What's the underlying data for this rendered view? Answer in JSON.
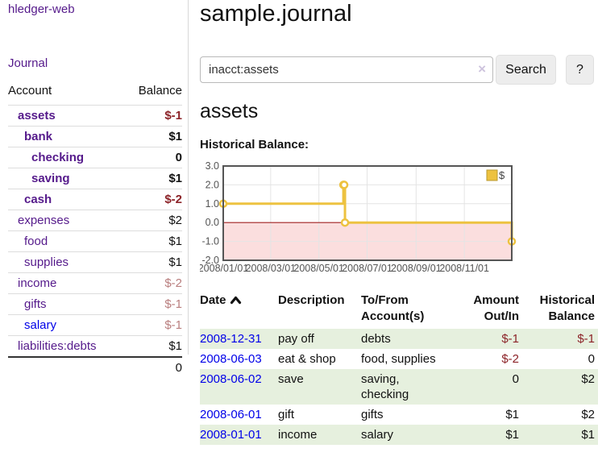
{
  "app": {
    "title": "hledger-web"
  },
  "sidebar": {
    "journal_link": "Journal",
    "accounts_header": {
      "account": "Account",
      "balance": "Balance"
    },
    "accounts": [
      {
        "name": "assets",
        "balance": "$-1",
        "indent": 1,
        "bold": true,
        "neg": "strong"
      },
      {
        "name": "bank",
        "balance": "$1",
        "indent": 2,
        "bold": true
      },
      {
        "name": "checking",
        "balance": "0",
        "indent": 3,
        "bold": true
      },
      {
        "name": "saving",
        "balance": "$1",
        "indent": 3,
        "bold": true
      },
      {
        "name": "cash",
        "balance": "$-2",
        "indent": 2,
        "bold": true,
        "neg": "strong"
      },
      {
        "name": "expenses",
        "balance": "$2",
        "indent": 1
      },
      {
        "name": "food",
        "balance": "$1",
        "indent": 2
      },
      {
        "name": "supplies",
        "balance": "$1",
        "indent": 2
      },
      {
        "name": "income",
        "balance": "$-2",
        "indent": 1,
        "neg": "soft"
      },
      {
        "name": "gifts",
        "balance": "$-1",
        "indent": 2,
        "neg": "soft"
      },
      {
        "name": "salary",
        "balance": "$-1",
        "indent": 2,
        "neg": "soft",
        "unvisited": true
      },
      {
        "name": "liabilities:debts",
        "balance": "$1",
        "indent": 1
      }
    ],
    "total": "0"
  },
  "header": {
    "title": "sample.journal"
  },
  "search": {
    "value": "inacct:assets",
    "clear_icon": "×",
    "button": "Search",
    "help_button": "?"
  },
  "account_page": {
    "title": "assets",
    "chart_label": "Historical Balance:"
  },
  "chart_data": {
    "type": "line",
    "step": true,
    "title": "Historical Balance:",
    "series": [
      {
        "name": "$",
        "color": "#edc240",
        "points": [
          {
            "x": "2008-01-01",
            "y": 1
          },
          {
            "x": "2008-06-01",
            "y": 2
          },
          {
            "x": "2008-06-02",
            "y": 2
          },
          {
            "x": "2008-06-03",
            "y": 0
          },
          {
            "x": "2008-12-31",
            "y": -1
          }
        ]
      }
    ],
    "x_range": [
      "2008-01-01",
      "2008-12-31"
    ],
    "x_ticks": [
      {
        "date": "2008-01-01",
        "label": "2008/01/01"
      },
      {
        "date": "2008-03-01",
        "label": "2008/03/01"
      },
      {
        "date": "2008-05-01",
        "label": "2008/05/01"
      },
      {
        "date": "2008-07-01",
        "label": "2008/07/01"
      },
      {
        "date": "2008-09-01",
        "label": "2008/09/01"
      },
      {
        "date": "2008-11-01",
        "label": "2008/11/01"
      }
    ],
    "y_ticks": [
      3.0,
      2.0,
      1.0,
      0.0,
      -1.0,
      -2.0
    ],
    "ylim": [
      -2,
      3
    ],
    "legend": {
      "label": "$",
      "color": "#edc240",
      "position": "top-right"
    },
    "grid": true,
    "negative_region": true,
    "colors": {
      "negative_fill": "#fbdede",
      "zero_line": "#a02020",
      "frame": "#555555",
      "gridline": "#e4e4e4",
      "tick_text": "#545454"
    }
  },
  "register": {
    "columns": [
      "Date",
      "Description",
      "To/From\nAccount(s)",
      "Amount\nOut/In",
      "Historical\nBalance"
    ],
    "sort_icon": "chevron-up",
    "rows": [
      {
        "date": "2008-12-31",
        "description": "pay off",
        "accounts": "debts",
        "amount": "$-1",
        "balance": "$-1"
      },
      {
        "date": "2008-06-03",
        "description": "eat & shop",
        "accounts": "food, supplies",
        "amount": "$-2",
        "balance": "0"
      },
      {
        "date": "2008-06-02",
        "description": "save",
        "accounts": "saving,\nchecking",
        "amount": "0",
        "balance": "$2"
      },
      {
        "date": "2008-06-01",
        "description": "gift",
        "accounts": "gifts",
        "amount": "$1",
        "balance": "$2"
      },
      {
        "date": "2008-01-01",
        "description": "income",
        "accounts": "salary",
        "amount": "$1",
        "balance": "$1"
      }
    ]
  },
  "colors": {
    "link_purple": "#551a8b",
    "link_blue": "#0000e8",
    "negative_strong": "#8c2328",
    "negative_soft": "#b97e7e",
    "row_stripe_green": "#e6f0de",
    "series_gold": "#edc240"
  }
}
